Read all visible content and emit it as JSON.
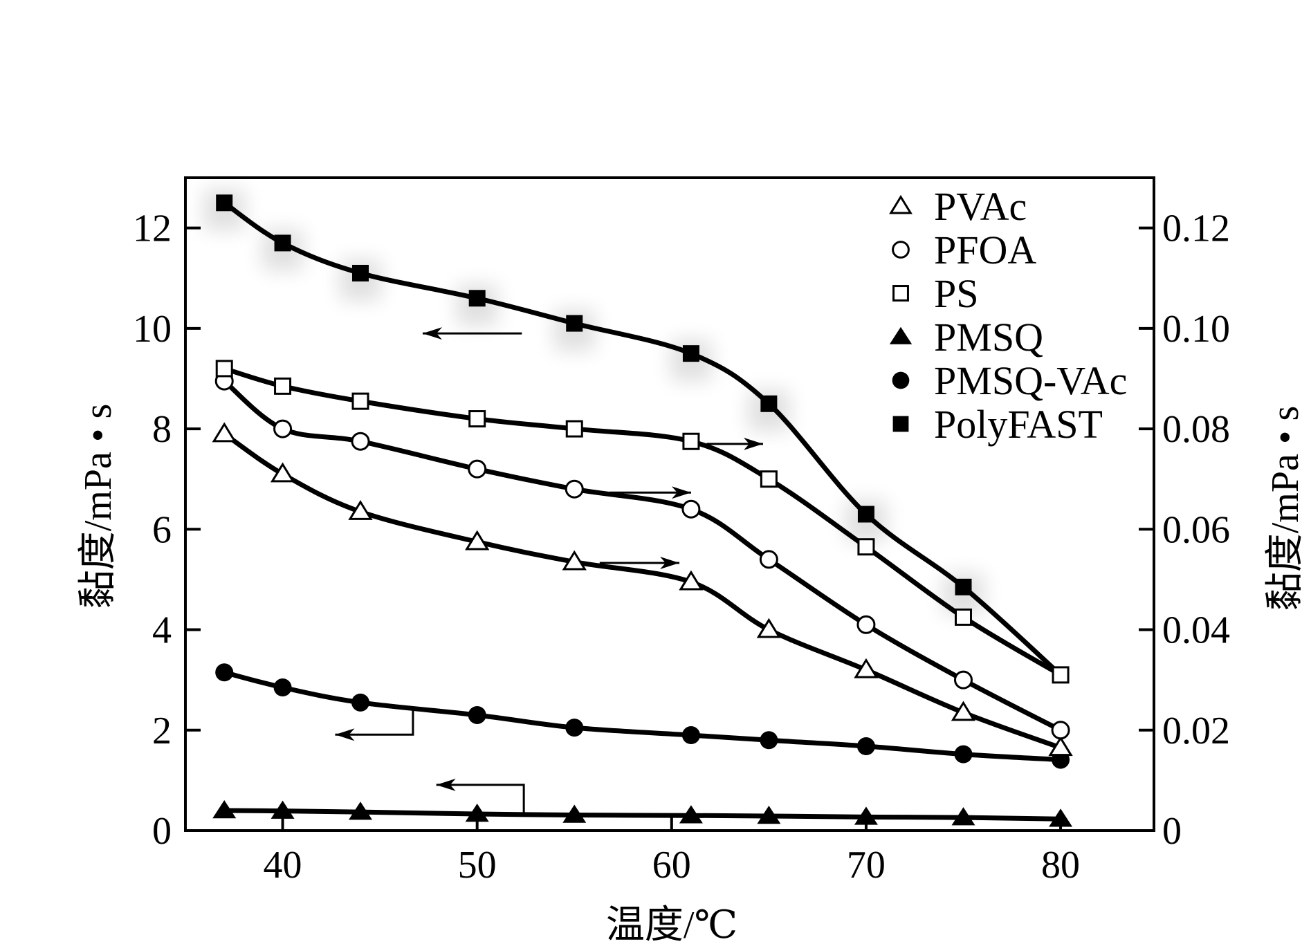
{
  "chart_data": {
    "type": "line",
    "title": "",
    "xlabel": "温度/℃",
    "ylabel": "黏度/mPa • s",
    "ylabel_right": "黏度/mPa • s",
    "xlim": [
      35,
      84.8
    ],
    "ylim": [
      0,
      13
    ],
    "ylim_right": [
      0,
      0.13
    ],
    "grid": false,
    "legend_position": "top-right",
    "x_ticks": [
      40,
      50,
      60,
      70,
      80
    ],
    "x_tick_labels": [
      "40",
      "50",
      "60",
      "70",
      "80"
    ],
    "y_ticks": [
      0,
      2,
      4,
      6,
      8,
      10,
      12
    ],
    "y_tick_labels": [
      "0",
      "2",
      "4",
      "6",
      "8",
      "10",
      "12"
    ],
    "y_right_ticks": [
      0,
      0.02,
      0.04,
      0.06,
      0.08,
      0.1,
      0.12
    ],
    "y_right_tick_labels": [
      "0",
      "0.02",
      "0.04",
      "0.06",
      "0.08",
      "0.10",
      "0.12"
    ],
    "x": [
      37,
      40,
      44,
      50,
      55,
      61,
      65,
      70,
      75,
      80
    ],
    "series": [
      {
        "name": "PVAc",
        "marker": "triangle-open",
        "axis": "right",
        "axis_note": "values on left scale; read right axis ×0.01",
        "values": [
          7.9,
          7.1,
          6.35,
          5.75,
          5.35,
          4.95,
          4.0,
          3.2,
          2.35,
          1.65
        ]
      },
      {
        "name": "PFOA",
        "marker": "circle-open",
        "axis": "right",
        "values": [
          8.95,
          8.0,
          7.75,
          7.2,
          6.8,
          6.4,
          5.4,
          4.1,
          3.0,
          2.0
        ]
      },
      {
        "name": "PS",
        "marker": "square-open",
        "axis": "right",
        "values": [
          9.2,
          8.85,
          8.55,
          8.2,
          8.0,
          7.75,
          7.0,
          5.65,
          4.25,
          3.1
        ]
      },
      {
        "name": "PMSQ",
        "marker": "triangle-filled",
        "axis": "left",
        "values": [
          0.4,
          0.39,
          0.37,
          0.33,
          0.31,
          0.3,
          0.29,
          0.27,
          0.26,
          0.23
        ]
      },
      {
        "name": "PMSQ-VAc",
        "marker": "circle-filled",
        "axis": "left",
        "values": [
          3.15,
          2.85,
          2.55,
          2.3,
          2.05,
          1.9,
          1.8,
          1.68,
          1.52,
          1.41
        ]
      },
      {
        "name": "PolyFAST",
        "marker": "square-filled",
        "axis": "left",
        "values": [
          12.5,
          11.7,
          11.1,
          10.6,
          10.1,
          9.5,
          8.5,
          6.3,
          4.85,
          3.1
        ]
      }
    ],
    "annotations": [
      {
        "type": "arrow",
        "series": "PolyFAST",
        "direction": "left",
        "meaning": "refers to left axis",
        "from": [
          52.3,
          9.9
        ],
        "to": [
          47.2,
          9.9
        ]
      },
      {
        "type": "arrow",
        "series": "PS",
        "direction": "right",
        "meaning": "refers to right axis",
        "from": [
          61.8,
          7.7
        ],
        "to": [
          64.7,
          7.7
        ]
      },
      {
        "type": "arrow",
        "series": "PFOA",
        "direction": "right",
        "meaning": "refers to right axis",
        "from": [
          56.8,
          6.73
        ],
        "to": [
          61.0,
          6.73
        ]
      },
      {
        "type": "arrow",
        "series": "PVAc",
        "direction": "right",
        "meaning": "refers to right axis",
        "from": [
          56.3,
          5.33
        ],
        "to": [
          60.4,
          5.33
        ]
      },
      {
        "type": "bent-arrow",
        "series": "PMSQ-VAc",
        "direction": "left",
        "meaning": "refers to left axis",
        "points": [
          [
            46.7,
            2.46
          ],
          [
            46.7,
            1.91
          ],
          [
            42.7,
            1.91
          ]
        ]
      },
      {
        "type": "bent-arrow",
        "series": "PMSQ",
        "direction": "left",
        "meaning": "refers to left axis",
        "points": [
          [
            52.4,
            0.31
          ],
          [
            52.4,
            0.91
          ],
          [
            47.9,
            0.91
          ]
        ]
      }
    ]
  }
}
